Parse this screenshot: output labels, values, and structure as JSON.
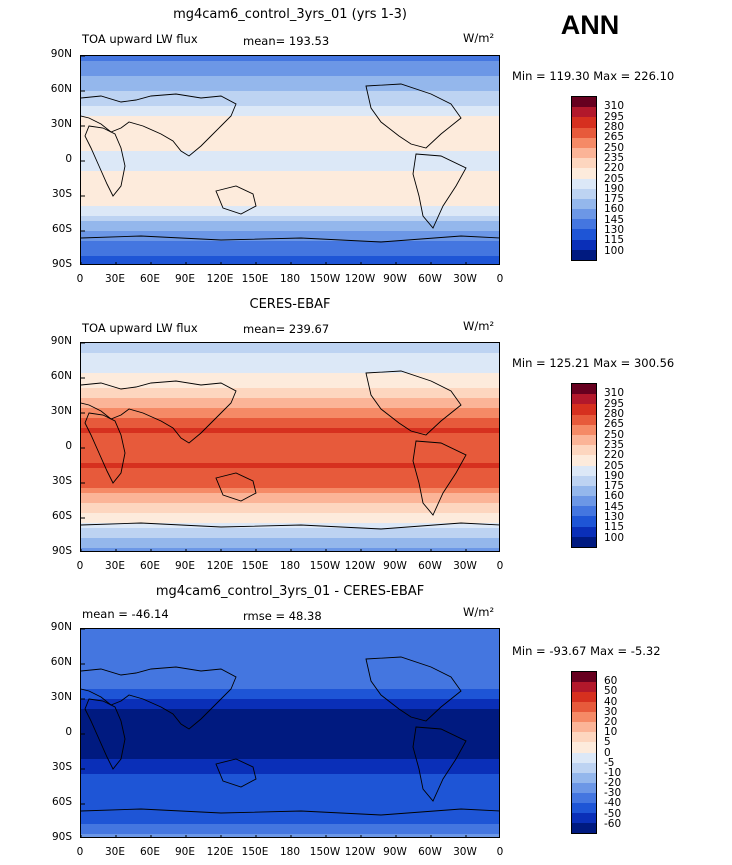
{
  "season": "ANN",
  "panels": [
    {
      "title": "mg4cam6_control_3yrs_01 (yrs 1-3)",
      "left_label": "TOA upward LW flux",
      "center_label": "mean= 193.53",
      "units": "W/m²",
      "minmax": "Min = 119.30 Max = 226.10",
      "colorbar_labels": [
        "310",
        "295",
        "280",
        "265",
        "250",
        "235",
        "220",
        "205",
        "190",
        "175",
        "160",
        "145",
        "130",
        "115",
        "100"
      ]
    },
    {
      "title": "CERES-EBAF",
      "left_label": "TOA upward LW flux",
      "center_label": "mean= 239.67",
      "units": "W/m²",
      "minmax": "Min = 125.21 Max = 300.56",
      "colorbar_labels": [
        "310",
        "295",
        "280",
        "265",
        "250",
        "235",
        "220",
        "205",
        "190",
        "175",
        "160",
        "145",
        "130",
        "115",
        "100"
      ]
    },
    {
      "title": "mg4cam6_control_3yrs_01 - CERES-EBAF",
      "left_label": "mean = -46.14",
      "center_label": "rmse =  48.38",
      "units": "W/m²",
      "minmax": "Min = -93.67 Max =  -5.32",
      "colorbar_labels": [
        "60",
        "50",
        "40",
        "30",
        "20",
        "10",
        "5",
        "0",
        "-5",
        "-10",
        "-20",
        "-30",
        "-40",
        "-50",
        "-60"
      ]
    }
  ],
  "lat_ticks": [
    "90N",
    "60N",
    "30N",
    "0",
    "30S",
    "60S",
    "90S"
  ],
  "lon_ticks": [
    "0",
    "30E",
    "60E",
    "90E",
    "120E",
    "150E",
    "180",
    "150W",
    "120W",
    "90W",
    "60W",
    "30W",
    "0"
  ],
  "colors": {
    "abs_scale": [
      "#67001f",
      "#b2182b",
      "#d6301f",
      "#e75a3b",
      "#f58a66",
      "#fbb497",
      "#fdd6bf",
      "#fdebdc",
      "#dce8f7",
      "#bdd3f2",
      "#94b7ec",
      "#6c97e6",
      "#4476e0",
      "#1e55d6",
      "#0a2fb8",
      "#001a80"
    ],
    "diff_scale": [
      "#67001f",
      "#b2182b",
      "#d6301f",
      "#e75a3b",
      "#f58a66",
      "#fbb497",
      "#fdd6bf",
      "#fdebdc",
      "#dce8f7",
      "#bdd3f2",
      "#94b7ec",
      "#6c97e6",
      "#4476e0",
      "#1e55d6",
      "#0a2fb8",
      "#001a80"
    ]
  },
  "chart_data": [
    {
      "type": "heatmap",
      "title": "mg4cam6_control_3yrs_01 (yrs 1-3)",
      "variable": "TOA upward LW flux",
      "units": "W/m2",
      "mean": 193.53,
      "min": 119.3,
      "max": 226.1,
      "levels": [
        100,
        115,
        130,
        145,
        160,
        175,
        190,
        205,
        220,
        235,
        250,
        265,
        280,
        295,
        310
      ],
      "zonal_profile": {
        "lat": [
          90,
          75,
          60,
          45,
          30,
          15,
          0,
          -15,
          -30,
          -45,
          -60,
          -75,
          -90
        ],
        "value": [
          140,
          155,
          175,
          195,
          215,
          210,
          195,
          215,
          220,
          190,
          160,
          135,
          125
        ]
      }
    },
    {
      "type": "heatmap",
      "title": "CERES-EBAF",
      "variable": "TOA upward LW flux",
      "units": "W/m2",
      "mean": 239.67,
      "min": 125.21,
      "max": 300.56,
      "levels": [
        100,
        115,
        130,
        145,
        160,
        175,
        190,
        205,
        220,
        235,
        250,
        265,
        280,
        295,
        310
      ],
      "zonal_profile": {
        "lat": [
          90,
          75,
          60,
          45,
          30,
          15,
          0,
          -15,
          -30,
          -45,
          -60,
          -75,
          -90
        ],
        "value": [
          180,
          195,
          210,
          228,
          262,
          280,
          265,
          280,
          272,
          235,
          210,
          180,
          150
        ]
      }
    },
    {
      "type": "heatmap",
      "title": "mg4cam6_control_3yrs_01 - CERES-EBAF",
      "units": "W/m2",
      "mean": -46.14,
      "rmse": 48.38,
      "min": -93.67,
      "max": -5.32,
      "levels": [
        -60,
        -50,
        -40,
        -30,
        -20,
        -10,
        -5,
        0,
        5,
        10,
        20,
        30,
        40,
        50,
        60
      ],
      "zonal_profile": {
        "lat": [
          90,
          75,
          60,
          45,
          30,
          15,
          0,
          -15,
          -30,
          -45,
          -60,
          -75,
          -90
        ],
        "value": [
          -40,
          -40,
          -35,
          -33,
          -47,
          -70,
          -70,
          -65,
          -52,
          -45,
          -50,
          -45,
          -25
        ]
      }
    }
  ]
}
